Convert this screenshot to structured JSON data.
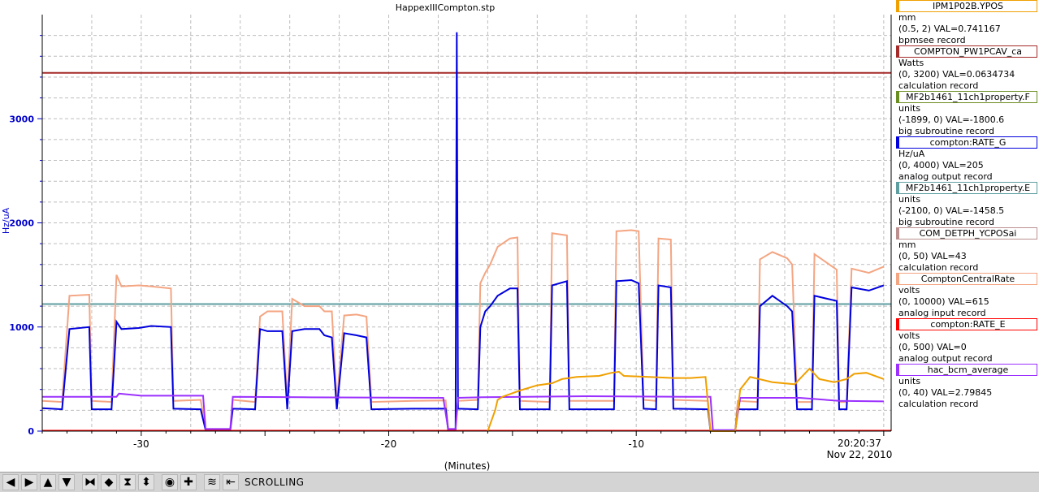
{
  "window": {
    "title": "HappexIIICompton.stp"
  },
  "chart_data": {
    "type": "line",
    "title": "HappexIIICompton.stp",
    "xlabel": "(Minutes)",
    "ylabel": "Hz/uA",
    "xlim": [
      -34,
      0.3
    ],
    "ylim": [
      0,
      4000
    ],
    "x_ticks": [
      -30,
      -20,
      -10
    ],
    "y_ticks": [
      0,
      1000,
      2000,
      3000
    ],
    "timestamp": [
      "20:20:37",
      "Nov 22, 2010"
    ],
    "series": [
      {
        "name": "COMPTON_PW1PCAV_ca",
        "color": "#a52a2a",
        "points": [
          [
            -34,
            3440
          ],
          [
            0.3,
            3440
          ]
        ]
      },
      {
        "name": "MF2b1461_11ch1property.E",
        "color": "#5f9ea0",
        "points": [
          [
            -34,
            1220
          ],
          [
            0.3,
            1220
          ]
        ]
      },
      {
        "name": "ComptonCentralRate",
        "color": "#f4a582",
        "points": [
          [
            -34,
            290
          ],
          [
            -33.2,
            280
          ],
          [
            -32.9,
            1300
          ],
          [
            -32.1,
            1310
          ],
          [
            -32,
            290
          ],
          [
            -31.2,
            280
          ],
          [
            -31,
            1500
          ],
          [
            -30.8,
            1390
          ],
          [
            -30.1,
            1400
          ],
          [
            -29.6,
            1390
          ],
          [
            -28.8,
            1370
          ],
          [
            -28.7,
            290
          ],
          [
            -27.6,
            300
          ],
          [
            -27.4,
            20
          ],
          [
            -26.4,
            20
          ],
          [
            -26.3,
            300
          ],
          [
            -25.4,
            280
          ],
          [
            -25.2,
            1100
          ],
          [
            -24.9,
            1150
          ],
          [
            -24.3,
            1150
          ],
          [
            -24.1,
            290
          ],
          [
            -23.9,
            1270
          ],
          [
            -23.4,
            1200
          ],
          [
            -22.8,
            1200
          ],
          [
            -22.6,
            1150
          ],
          [
            -22.3,
            1150
          ],
          [
            -22.1,
            280
          ],
          [
            -21.8,
            1110
          ],
          [
            -21.3,
            1120
          ],
          [
            -20.9,
            1100
          ],
          [
            -20.7,
            280
          ],
          [
            -19,
            290
          ],
          [
            -17.7,
            295
          ],
          [
            -17.6,
            20
          ],
          [
            -17.3,
            20
          ],
          [
            -17.2,
            290
          ],
          [
            -16.4,
            300
          ],
          [
            -16.3,
            1420
          ],
          [
            -16.1,
            1520
          ],
          [
            -15.9,
            1600
          ],
          [
            -15.6,
            1770
          ],
          [
            -15.1,
            1850
          ],
          [
            -14.8,
            1860
          ],
          [
            -14.7,
            290
          ],
          [
            -13.5,
            280
          ],
          [
            -13.4,
            1900
          ],
          [
            -12.8,
            1880
          ],
          [
            -12.7,
            290
          ],
          [
            -10.9,
            290
          ],
          [
            -10.8,
            1920
          ],
          [
            -10.2,
            1930
          ],
          [
            -9.9,
            1920
          ],
          [
            -9.7,
            300
          ],
          [
            -9.2,
            290
          ],
          [
            -9.1,
            1850
          ],
          [
            -8.6,
            1840
          ],
          [
            -8.5,
            300
          ],
          [
            -7.1,
            290
          ],
          [
            -7,
            0
          ],
          [
            -6,
            0
          ],
          [
            -5.9,
            290
          ],
          [
            -5.1,
            280
          ],
          [
            -5,
            1650
          ],
          [
            -4.5,
            1720
          ],
          [
            -3.9,
            1660
          ],
          [
            -3.7,
            1600
          ],
          [
            -3.5,
            280
          ],
          [
            -2.9,
            280
          ],
          [
            -2.8,
            1700
          ],
          [
            -1.9,
            1550
          ],
          [
            -1.8,
            280
          ],
          [
            -1.5,
            280
          ],
          [
            -1.3,
            1560
          ],
          [
            -0.6,
            1520
          ],
          [
            0,
            1580
          ]
        ]
      },
      {
        "name": "compton:RATE_G",
        "color": "#0000dd",
        "points": [
          [
            -34,
            220
          ],
          [
            -33.2,
            210
          ],
          [
            -32.9,
            980
          ],
          [
            -32.1,
            1000
          ],
          [
            -32,
            210
          ],
          [
            -31.2,
            210
          ],
          [
            -31,
            1050
          ],
          [
            -30.8,
            980
          ],
          [
            -30.1,
            990
          ],
          [
            -29.6,
            1010
          ],
          [
            -28.8,
            1000
          ],
          [
            -28.7,
            215
          ],
          [
            -27.6,
            210
          ],
          [
            -27.4,
            10
          ],
          [
            -26.4,
            10
          ],
          [
            -26.3,
            215
          ],
          [
            -25.4,
            210
          ],
          [
            -25.2,
            980
          ],
          [
            -24.9,
            960
          ],
          [
            -24.3,
            960
          ],
          [
            -24.1,
            210
          ],
          [
            -23.9,
            960
          ],
          [
            -23.4,
            980
          ],
          [
            -22.8,
            980
          ],
          [
            -22.6,
            920
          ],
          [
            -22.3,
            900
          ],
          [
            -22.1,
            210
          ],
          [
            -21.8,
            940
          ],
          [
            -21.3,
            920
          ],
          [
            -20.9,
            900
          ],
          [
            -20.7,
            210
          ],
          [
            -19,
            215
          ],
          [
            -17.7,
            215
          ],
          [
            -17.6,
            10
          ],
          [
            -17.3,
            10
          ],
          [
            -17.25,
            3830
          ],
          [
            -17.2,
            215
          ],
          [
            -16.4,
            210
          ],
          [
            -16.3,
            1000
          ],
          [
            -16.1,
            1150
          ],
          [
            -15.9,
            1200
          ],
          [
            -15.6,
            1300
          ],
          [
            -15.1,
            1370
          ],
          [
            -14.8,
            1370
          ],
          [
            -14.7,
            210
          ],
          [
            -13.5,
            210
          ],
          [
            -13.4,
            1400
          ],
          [
            -12.8,
            1440
          ],
          [
            -12.7,
            210
          ],
          [
            -10.9,
            210
          ],
          [
            -10.8,
            1440
          ],
          [
            -10.2,
            1450
          ],
          [
            -9.9,
            1420
          ],
          [
            -9.7,
            215
          ],
          [
            -9.2,
            210
          ],
          [
            -9.1,
            1400
          ],
          [
            -8.6,
            1380
          ],
          [
            -8.5,
            215
          ],
          [
            -7.1,
            210
          ],
          [
            -7,
            0
          ],
          [
            -6,
            0
          ],
          [
            -5.9,
            210
          ],
          [
            -5.1,
            210
          ],
          [
            -5,
            1200
          ],
          [
            -4.5,
            1300
          ],
          [
            -3.9,
            1200
          ],
          [
            -3.7,
            1150
          ],
          [
            -3.5,
            210
          ],
          [
            -2.9,
            210
          ],
          [
            -2.8,
            1300
          ],
          [
            -1.9,
            1250
          ],
          [
            -1.8,
            210
          ],
          [
            -1.5,
            210
          ],
          [
            -1.3,
            1380
          ],
          [
            -0.6,
            1350
          ],
          [
            0,
            1400
          ]
        ]
      },
      {
        "name": "compton:RATE_E",
        "color": "#ff0000",
        "points": [
          [
            -34,
            4
          ],
          [
            0.3,
            4
          ]
        ]
      },
      {
        "name": "hac_bcm_average",
        "color": "#9b30ff",
        "points": [
          [
            -34,
            330
          ],
          [
            -31,
            330
          ],
          [
            -30.9,
            360
          ],
          [
            -30,
            340
          ],
          [
            -27.5,
            340
          ],
          [
            -27.4,
            20
          ],
          [
            -26.4,
            20
          ],
          [
            -26.3,
            330
          ],
          [
            -23.5,
            325
          ],
          [
            -17.8,
            320
          ],
          [
            -17.6,
            20
          ],
          [
            -17.3,
            20
          ],
          [
            -17.2,
            320
          ],
          [
            -16.2,
            325
          ],
          [
            -12,
            335
          ],
          [
            -8,
            330
          ],
          [
            -7,
            330
          ],
          [
            -6.9,
            10
          ],
          [
            -6,
            10
          ],
          [
            -5.8,
            320
          ],
          [
            -3.4,
            320
          ],
          [
            -1.8,
            290
          ],
          [
            0,
            285
          ]
        ]
      },
      {
        "name": "IPM1P02B.YPOS",
        "color": "#f0a000",
        "points": [
          [
            -16,
            0
          ],
          [
            -15.7,
            200
          ],
          [
            -15.6,
            300
          ],
          [
            -15.4,
            330
          ],
          [
            -14.7,
            390
          ],
          [
            -14,
            440
          ],
          [
            -13.4,
            460
          ],
          [
            -13,
            500
          ],
          [
            -12.4,
            520
          ],
          [
            -11.5,
            530
          ],
          [
            -11,
            560
          ],
          [
            -10.7,
            570
          ],
          [
            -10.5,
            530
          ],
          [
            -9.5,
            520
          ],
          [
            -8.5,
            510
          ],
          [
            -7.8,
            510
          ],
          [
            -7.2,
            520
          ],
          [
            -7,
            0
          ],
          [
            -6,
            0
          ],
          [
            -5.8,
            400
          ],
          [
            -5.4,
            520
          ],
          [
            -4.5,
            470
          ],
          [
            -3.6,
            450
          ],
          [
            -3,
            600
          ],
          [
            -2.6,
            500
          ],
          [
            -2,
            470
          ],
          [
            -1.5,
            500
          ],
          [
            -1.2,
            550
          ],
          [
            -0.7,
            560
          ],
          [
            0,
            500
          ]
        ]
      }
    ]
  },
  "legend": [
    {
      "name": "IPM1P02B.YPOS",
      "color": "#f0a000",
      "unit": "mm",
      "range_val": "(0.5, 2) VAL=0.741167",
      "record": "bpmsee record"
    },
    {
      "name": "COMPTON_PW1PCAV_ca",
      "color": "#a52a2a",
      "unit": "Watts",
      "range_val": "(0, 3200) VAL=0.0634734",
      "record": "calculation record"
    },
    {
      "name": "MF2b1461_11ch1property.F",
      "color": "#6b8e23",
      "unit": "units",
      "range_val": "(-1899, 0) VAL=-1800.6",
      "record": "big subroutine record"
    },
    {
      "name": "compton:RATE_G",
      "color": "#0000dd",
      "unit": "Hz/uA",
      "range_val": "(0, 4000) VAL=205",
      "record": "analog output record"
    },
    {
      "name": "MF2b1461_11ch1property.E",
      "color": "#5f9ea0",
      "unit": "units",
      "range_val": "(-2100, 0) VAL=-1458.5",
      "record": "big subroutine record"
    },
    {
      "name": "COM_DETPH_YCPOSai",
      "color": "#bc8f8f",
      "unit": "mm",
      "range_val": "(0, 50) VAL=43",
      "record": "calculation record"
    },
    {
      "name": "ComptonCentralRate",
      "color": "#f4a582",
      "unit": "volts",
      "range_val": "(0, 10000) VAL=615",
      "record": "analog input record"
    },
    {
      "name": "compton:RATE_E",
      "color": "#ff0000",
      "unit": "volts",
      "range_val": "(0, 500)  VAL=0",
      "record": "analog output record"
    },
    {
      "name": "hac_bcm_average",
      "color": "#9b30ff",
      "unit": "units",
      "range_val": "(0, 40) VAL=2.79845",
      "record": "calculation record"
    }
  ],
  "toolbar": {
    "status": "SCROLLING",
    "icons": [
      "arrow-left-icon",
      "arrow-right-icon",
      "arrow-up-icon",
      "arrow-down-icon",
      "zoom-in-x-icon",
      "zoom-out-x-icon",
      "zoom-in-y-icon",
      "zoom-out-y-icon",
      "circle-icon",
      "plus-icon",
      "autoscale-icon",
      "export-icon"
    ],
    "glyphs": [
      "◀",
      "▶",
      "▲",
      "▼",
      "⧓",
      "◆",
      "⧗",
      "⬍",
      "◉",
      "✚",
      "≋",
      "⇤"
    ]
  }
}
